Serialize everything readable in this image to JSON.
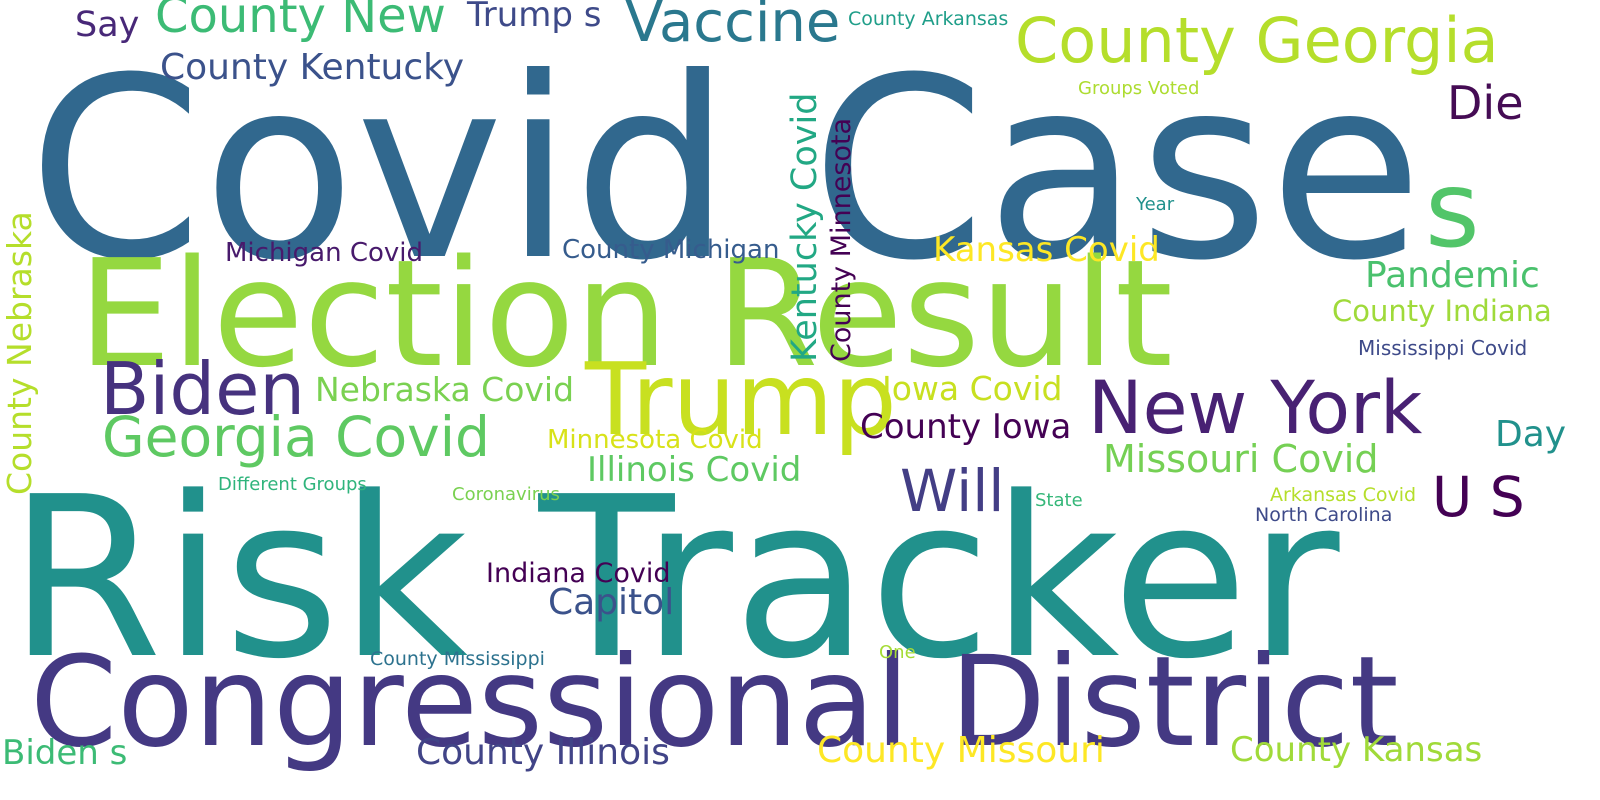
{
  "cloud": {
    "words": [
      {
        "key": "covid_case",
        "text": "Covid Case",
        "color": "#31688e"
      },
      {
        "key": "risk_tracker",
        "text": "Risk Tracker",
        "color": "#21918c"
      },
      {
        "key": "election_result",
        "text": "Election Result",
        "color": "#95d840"
      },
      {
        "key": "congressional_district",
        "text": "Congressional District",
        "color": "#443983"
      },
      {
        "key": "new_york",
        "text": "New York",
        "color": "#482173"
      },
      {
        "key": "trump",
        "text": "Trump",
        "color": "#c8e020"
      },
      {
        "key": "biden",
        "text": "Biden",
        "color": "#46327e"
      },
      {
        "key": "s",
        "text": "s",
        "color": "#52c569"
      },
      {
        "key": "county_georgia",
        "text": "County Georgia",
        "color": "#b5de2b"
      },
      {
        "key": "georgia_covid",
        "text": "Georgia Covid",
        "color": "#5ec962"
      },
      {
        "key": "vaccine",
        "text": "Vaccine",
        "color": "#2a788e"
      },
      {
        "key": "county_new",
        "text": "County New",
        "color": "#3cbb75"
      },
      {
        "key": "will",
        "text": "Will",
        "color": "#433e85"
      },
      {
        "key": "u_s",
        "text": "U S",
        "color": "#440154"
      },
      {
        "key": "die",
        "text": "Die",
        "color": "#450c54"
      },
      {
        "key": "missouri_covid",
        "text": "Missouri Covid",
        "color": "#75d054"
      },
      {
        "key": "county_kentucky",
        "text": "County Kentucky",
        "color": "#3b528b"
      },
      {
        "key": "pandemic",
        "text": "Pandemic",
        "color": "#4ac16d"
      },
      {
        "key": "county_indiana",
        "text": "County Indiana",
        "color": "#9fda3a"
      },
      {
        "key": "capitol",
        "text": "Capitol",
        "color": "#3b528b"
      },
      {
        "key": "nebraska_covid",
        "text": "Nebraska Covid",
        "color": "#7ad151"
      },
      {
        "key": "illinois_covid",
        "text": "Illinois Covid",
        "color": "#5ec962"
      },
      {
        "key": "iowa_covid",
        "text": "Iowa Covid",
        "color": "#c8e020"
      },
      {
        "key": "kansas_covid",
        "text": "Kansas Covid",
        "color": "#fde725"
      },
      {
        "key": "county_iowa",
        "text": "County Iowa",
        "color": "#440154"
      },
      {
        "key": "day",
        "text": "Day",
        "color": "#21918c"
      },
      {
        "key": "county_illinois",
        "text": "County Illinois",
        "color": "#414487"
      },
      {
        "key": "county_missouri",
        "text": "County Missouri",
        "color": "#fde725"
      },
      {
        "key": "county_kansas",
        "text": "County Kansas",
        "color": "#a0da39"
      },
      {
        "key": "bidens",
        "text": "Biden s",
        "color": "#3cbb75"
      },
      {
        "key": "trumps",
        "text": "Trump s",
        "color": "#3e4a89"
      },
      {
        "key": "say",
        "text": "Say",
        "color": "#482878"
      },
      {
        "key": "michigan_covid",
        "text": "Michigan Covid",
        "color": "#481a6c"
      },
      {
        "key": "county_michigan",
        "text": "County Michigan",
        "color": "#365c8d"
      },
      {
        "key": "minnesota_covid",
        "text": "Minnesota Covid",
        "color": "#d8e219"
      },
      {
        "key": "indiana_covid",
        "text": "Indiana Covid",
        "color": "#440154"
      },
      {
        "key": "mississippi_covid",
        "text": "Mississippi Covid",
        "color": "#3e4a89"
      },
      {
        "key": "arkansas_covid",
        "text": "Arkansas Covid",
        "color": "#b5de2b"
      },
      {
        "key": "north_carolina",
        "text": "North Carolina",
        "color": "#3e4a89"
      },
      {
        "key": "county_arkansas",
        "text": "County Arkansas",
        "color": "#1f9e89"
      },
      {
        "key": "groups_voted",
        "text": "Groups Voted",
        "color": "#addc30"
      },
      {
        "key": "year",
        "text": "Year",
        "color": "#21918c"
      },
      {
        "key": "different_groups",
        "text": "Different Groups",
        "color": "#2fb47c"
      },
      {
        "key": "coronavirus",
        "text": "Coronavirus",
        "color": "#7ad151"
      },
      {
        "key": "state",
        "text": "State",
        "color": "#35b779"
      },
      {
        "key": "county_mississippi",
        "text": "County Mississippi",
        "color": "#2c728e"
      },
      {
        "key": "one",
        "text": "One",
        "color": "#a5db36"
      },
      {
        "key": "kentucky_covid",
        "text": "Kentucky Covid",
        "color": "#22a884"
      },
      {
        "key": "county_minnesota",
        "text": "County Minnesota",
        "color": "#440154"
      },
      {
        "key": "county_nebraska",
        "text": "County Nebraska",
        "color": "#b5de2b"
      }
    ]
  }
}
